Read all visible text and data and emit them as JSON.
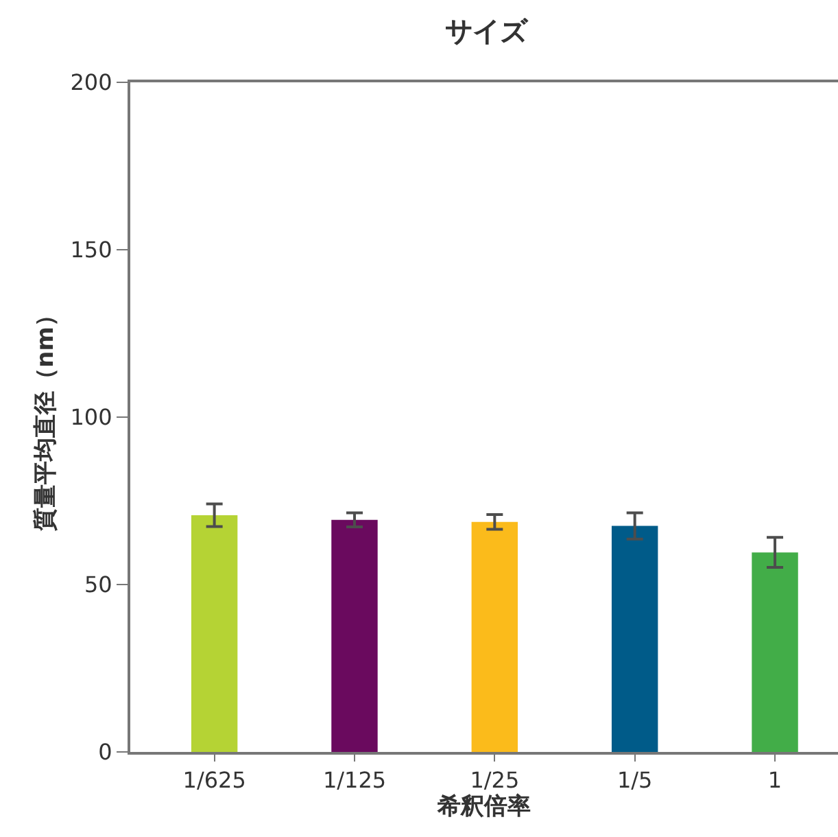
{
  "chart_data": {
    "type": "bar",
    "title": "サイズ",
    "xlabel": "希釈倍率",
    "ylabel": "質量平均直径（nm）",
    "categories": [
      "1/625",
      "1/125",
      "1/25",
      "1/5",
      "1"
    ],
    "values": [
      70.7,
      69.3,
      68.7,
      67.5,
      59.6
    ],
    "errors": [
      3.4,
      2.1,
      2.2,
      3.9,
      4.5
    ],
    "colors": [
      "#b5d334",
      "#6a0a5e",
      "#fbbb1b",
      "#005b89",
      "#42ad48"
    ],
    "ylim": [
      0,
      200
    ],
    "yticks": [
      0,
      50,
      100,
      150,
      200
    ]
  }
}
